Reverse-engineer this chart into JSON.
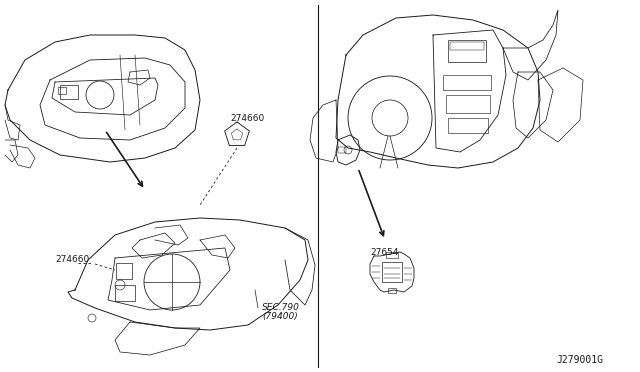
{
  "bg_color": "#ffffff",
  "line_color": "#1a1a1a",
  "label_274660_top": "274660",
  "label_274660_bot": "274660",
  "label_27654": "27654",
  "label_sec": "SEC.790",
  "label_sec2": "(79400)",
  "label_id": "J279001G",
  "fs": 6.5
}
